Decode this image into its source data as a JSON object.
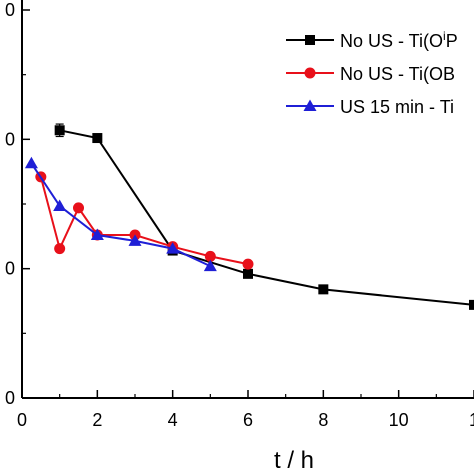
{
  "chart_data": {
    "type": "line",
    "title": "",
    "xlabel": "t / h",
    "ylabel": "",
    "xlim": [
      0,
      12
    ],
    "ylim": [
      0,
      100
    ],
    "x_ticks": [
      "0",
      "2",
      "4",
      "6",
      "8",
      "10",
      "1"
    ],
    "y_ticks": [
      "0",
      "0",
      "0",
      "0"
    ],
    "legend_position": "top-right",
    "grid": false,
    "series": [
      {
        "name": "No US - Ti(OⁱP",
        "name_parts": [
          "No US - Ti(O",
          "i",
          "P"
        ],
        "color": "#000000",
        "marker": "square",
        "x": [
          1,
          2,
          4,
          6,
          8,
          12
        ],
        "y": [
          69,
          67,
          38,
          32,
          28,
          24
        ],
        "error": [
          1.6,
          0,
          0,
          0,
          0,
          0
        ]
      },
      {
        "name": "No US - Ti(OB",
        "color": "#e8101a",
        "marker": "circle",
        "x": [
          0.5,
          1,
          1.5,
          2,
          3,
          4,
          5,
          6
        ],
        "y": [
          57,
          38.5,
          49,
          42,
          42,
          39,
          36.5,
          34.5
        ]
      },
      {
        "name": "US 15 min - Ti",
        "color": "#1f1fd6",
        "marker": "triangle",
        "x": [
          0.25,
          1,
          2,
          3,
          4,
          5
        ],
        "y": [
          60.5,
          49.5,
          42,
          40.5,
          38.5,
          34
        ]
      }
    ]
  }
}
